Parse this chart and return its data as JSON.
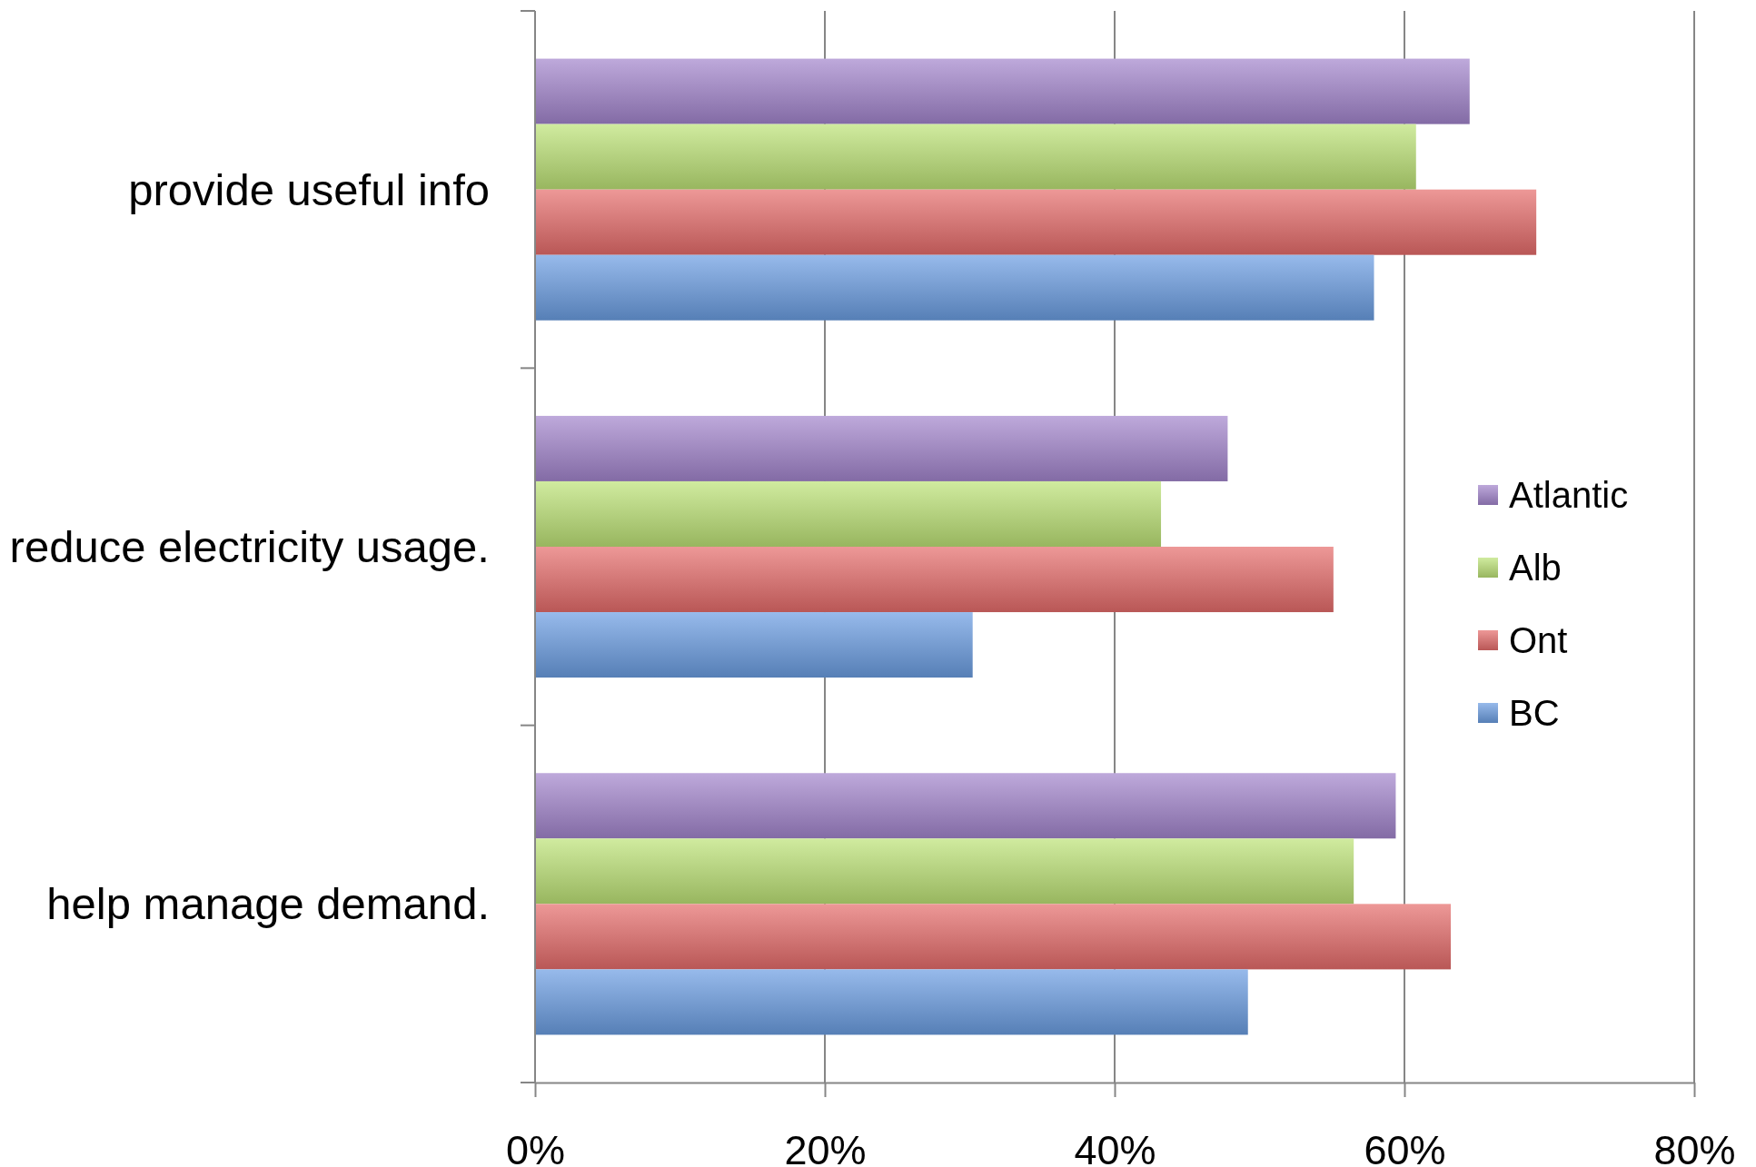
{
  "chart_data": {
    "type": "bar",
    "orientation": "horizontal",
    "categories": [
      "provide useful info",
      "reduce electricity usage.",
      "help manage demand."
    ],
    "series": [
      {
        "name": "Atlantic",
        "color": "#a284cc",
        "values": [
          64.5,
          47.8,
          59.4
        ]
      },
      {
        "name": "Alb",
        "color": "#bce276",
        "values": [
          60.8,
          43.2,
          56.5
        ]
      },
      {
        "name": "Ont",
        "color": "#e56c6b",
        "values": [
          69.1,
          55.1,
          63.2
        ]
      },
      {
        "name": "BC",
        "color": "#6a9de2",
        "values": [
          57.9,
          30.2,
          49.2
        ]
      }
    ],
    "xlim": [
      0,
      80
    ],
    "xticks": [
      {
        "value": 0,
        "label": "0%"
      },
      {
        "value": 20,
        "label": "20%"
      },
      {
        "value": 40,
        "label": "40%"
      },
      {
        "value": 60,
        "label": "60%"
      },
      {
        "value": 80,
        "label": "80%"
      }
    ],
    "grid": "x",
    "legend": "right"
  }
}
